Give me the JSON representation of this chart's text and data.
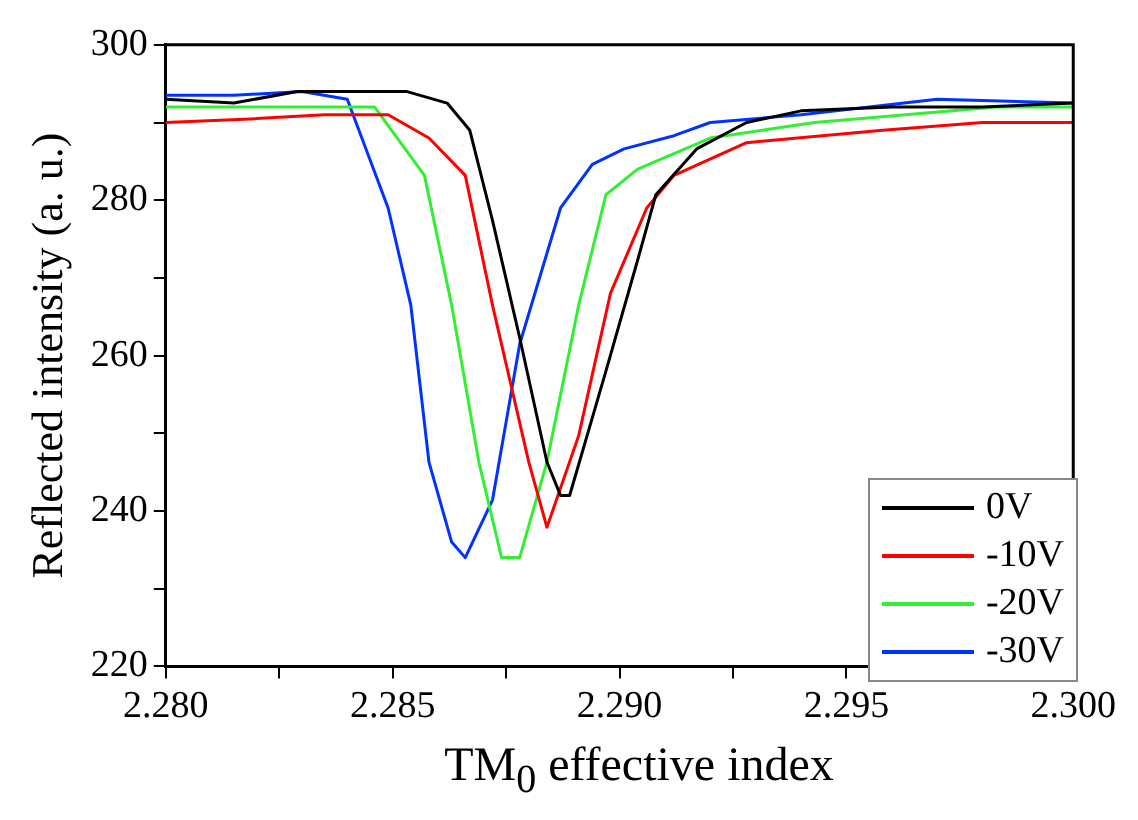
{
  "chart_data": {
    "type": "line",
    "xlabel": "TM$_{0}$ effective index",
    "ylabel": "Reflected intensity (a. u.)",
    "xlim": [
      2.28,
      2.3
    ],
    "xticks": [
      {
        "value": 2.28,
        "label": "2.280"
      },
      {
        "value": 2.2825,
        "label": null
      },
      {
        "value": 2.285,
        "label": "2.285"
      },
      {
        "value": 2.2875,
        "label": null
      },
      {
        "value": 2.29,
        "label": "2.290"
      },
      {
        "value": 2.2925,
        "label": null
      },
      {
        "value": 2.295,
        "label": "2.295"
      },
      {
        "value": 2.2975,
        "label": null
      },
      {
        "value": 2.3,
        "label": "2.300"
      }
    ],
    "ylim": [
      220,
      300
    ],
    "yticks": [
      220,
      {
        "value": 230,
        "label": null
      },
      240,
      {
        "value": 250,
        "label": null
      },
      260,
      {
        "value": 270,
        "label": null
      },
      280,
      {
        "value": 290,
        "label": null
      },
      300
    ],
    "grid": false,
    "legend": "bottom right",
    "marker": "none",
    "line_style": "solid",
    "series": [
      {
        "name": "0V",
        "color": "#000000",
        "x": [
          2.28,
          2.2815,
          2.2829,
          2.284,
          2.2853,
          2.2862,
          2.2867,
          2.2872,
          2.2878,
          2.2884,
          2.2887,
          2.2889,
          2.2893,
          2.2897,
          2.2904,
          2.2908,
          2.2917,
          2.2928,
          2.294,
          2.296,
          2.298,
          2.3
        ],
        "values": [
          293,
          292.5,
          294,
          294,
          294,
          292.5,
          289,
          277.4,
          262.3,
          246.3,
          242,
          242,
          250,
          258,
          272.3,
          280.7,
          286.6,
          290,
          291.5,
          292,
          292,
          292.5
        ]
      },
      {
        "name": "-10V",
        "color": "#ff0000",
        "x": [
          2.28,
          2.282,
          2.2835,
          2.2849,
          2.2858,
          2.2866,
          2.2872,
          2.288,
          2.2884,
          2.2891,
          2.2898,
          2.2906,
          2.2912,
          2.2928,
          2.2958,
          2.298,
          2.3
        ],
        "values": [
          290,
          290.5,
          291,
          291,
          288,
          283.2,
          266.5,
          246.3,
          237.9,
          249.7,
          268,
          279,
          283.2,
          287.4,
          289,
          290,
          290
        ]
      },
      {
        "name": "-20V",
        "color": "#33ee33",
        "x": [
          2.28,
          2.282,
          2.2846,
          2.2857,
          2.2863,
          2.2869,
          2.2874,
          2.2878,
          2.2884,
          2.2891,
          2.2897,
          2.2904,
          2.292,
          2.2943,
          2.2983,
          2.3
        ],
        "values": [
          292,
          292,
          292,
          283.2,
          266.5,
          246.3,
          234,
          234,
          246.3,
          266.5,
          280.7,
          284,
          288,
          290,
          292,
          292
        ]
      },
      {
        "name": "-30V",
        "color": "#0033ff",
        "x": [
          2.28,
          2.2815,
          2.283,
          2.284,
          2.2849,
          2.2854,
          2.2858,
          2.2863,
          2.2866,
          2.2872,
          2.2878,
          2.2887,
          2.2894,
          2.2901,
          2.2912,
          2.292,
          2.294,
          2.297,
          2.3
        ],
        "values": [
          293.5,
          293.5,
          294,
          293,
          279,
          266.5,
          246.3,
          236,
          234,
          241.4,
          261.5,
          279,
          284.6,
          286.6,
          288.3,
          290,
          291,
          293,
          292.5
        ]
      }
    ]
  }
}
